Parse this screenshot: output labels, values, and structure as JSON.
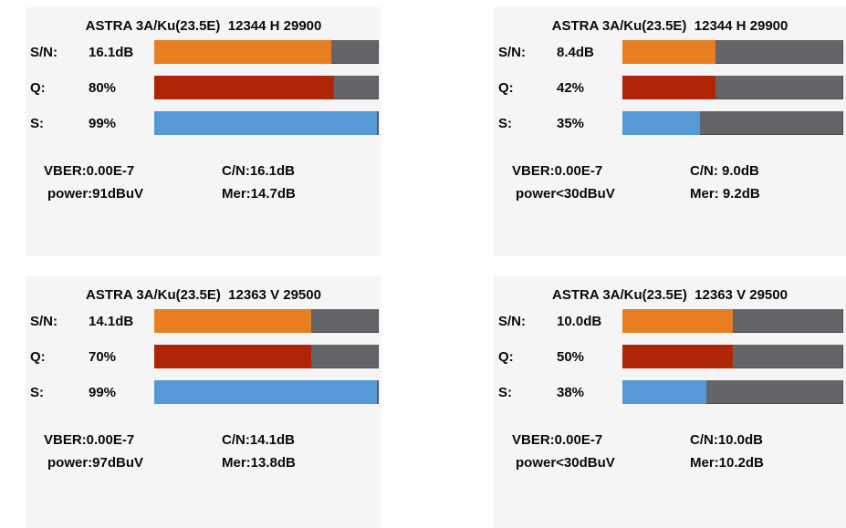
{
  "colors": {
    "page_bg": "#FFFFFF",
    "panel_bg": "#F5F5F6",
    "bar_track": "#646569",
    "bar_track_edge": "#54555A",
    "snr_bar": "#E87E22",
    "q_bar": "#B02505",
    "s_bar": "#5599D6",
    "text": "#0A0A0A"
  },
  "panels": [
    {
      "title": "ASTRA 3A/Ku(23.5E)  12344 H 29900",
      "rows": [
        {
          "label": "S/N:",
          "value": "16.1dB",
          "percent": 79
        },
        {
          "label": "Q:",
          "value": "80%",
          "percent": 80
        },
        {
          "label": "S:",
          "value": "99%",
          "percent": 99
        }
      ],
      "stats": {
        "vber": "VBER:0.00E-7",
        "power": "power:91dBuV",
        "cn": "C/N:16.1dB",
        "mer": "Mer:14.7dB"
      }
    },
    {
      "title": "ASTRA 3A/Ku(23.5E)  12344 H 29900",
      "rows": [
        {
          "label": "S/N:",
          "value": "8.4dB",
          "percent": 42
        },
        {
          "label": "Q:",
          "value": "42%",
          "percent": 42
        },
        {
          "label": "S:",
          "value": "35%",
          "percent": 35
        }
      ],
      "stats": {
        "vber": "VBER:0.00E-7",
        "power": "power<30dBuV",
        "cn": "C/N: 9.0dB",
        "mer": "Mer: 9.2dB"
      }
    },
    {
      "title": "ASTRA 3A/Ku(23.5E)  12363 V 29500",
      "rows": [
        {
          "label": "S/N:",
          "value": "14.1dB",
          "percent": 70
        },
        {
          "label": "Q:",
          "value": "70%",
          "percent": 70
        },
        {
          "label": "S:",
          "value": "99%",
          "percent": 99
        }
      ],
      "stats": {
        "vber": "VBER:0.00E-7",
        "power": "power:97dBuV",
        "cn": "C/N:14.1dB",
        "mer": "Mer:13.8dB"
      }
    },
    {
      "title": "ASTRA 3A/Ku(23.5E)  12363 V 29500",
      "rows": [
        {
          "label": "S/N:",
          "value": "10.0dB",
          "percent": 50
        },
        {
          "label": "Q:",
          "value": "50%",
          "percent": 50
        },
        {
          "label": "S:",
          "value": "38%",
          "percent": 38
        }
      ],
      "stats": {
        "vber": "VBER:0.00E-7",
        "power": "power<30dBuV",
        "cn": "C/N:10.0dB",
        "mer": "Mer:10.2dB"
      }
    }
  ]
}
